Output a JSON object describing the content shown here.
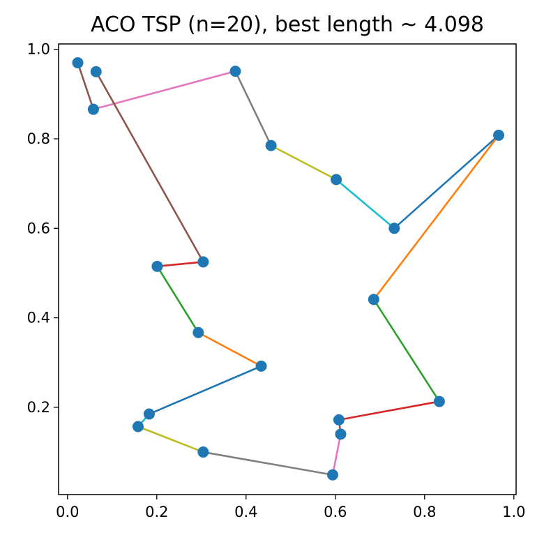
{
  "chart_data": {
    "type": "line",
    "title": "ACO TSP (n=20), best length ~ 4.098",
    "xlabel": "",
    "ylabel": "",
    "xlim": [
      -0.02,
      1.005
    ],
    "ylim": [
      0.005,
      1.012
    ],
    "xticks": [
      0.0,
      0.2,
      0.4,
      0.6,
      0.8,
      1.0
    ],
    "xtick_labels": [
      "0.0",
      "0.2",
      "0.4",
      "0.6",
      "0.8",
      "1.0"
    ],
    "yticks": [
      0.2,
      0.4,
      0.6,
      0.8,
      1.0
    ],
    "ytick_labels": [
      "0.2",
      "0.4",
      "0.6",
      "0.8",
      "1.0"
    ],
    "grid": false,
    "point_color": "#1f77b4",
    "tour": [
      [
        0.023,
        0.97
      ],
      [
        0.058,
        0.866
      ],
      [
        0.376,
        0.951
      ],
      [
        0.456,
        0.785
      ],
      [
        0.602,
        0.709
      ],
      [
        0.732,
        0.6
      ],
      [
        0.966,
        0.808
      ],
      [
        0.686,
        0.441
      ],
      [
        0.833,
        0.213
      ],
      [
        0.608,
        0.172
      ],
      [
        0.612,
        0.14
      ],
      [
        0.594,
        0.049
      ],
      [
        0.304,
        0.1
      ],
      [
        0.158,
        0.157
      ],
      [
        0.183,
        0.185
      ],
      [
        0.434,
        0.292
      ],
      [
        0.293,
        0.367
      ],
      [
        0.201,
        0.515
      ],
      [
        0.304,
        0.525
      ],
      [
        0.064,
        0.95
      ]
    ],
    "segment_colors": [
      "#8c564b",
      "#e377c2",
      "#7f7f7f",
      "#bcbd22",
      "#17becf",
      "#1f77b4",
      "#ff7f0e",
      "#2ca02c",
      "#d62728"
    ]
  }
}
